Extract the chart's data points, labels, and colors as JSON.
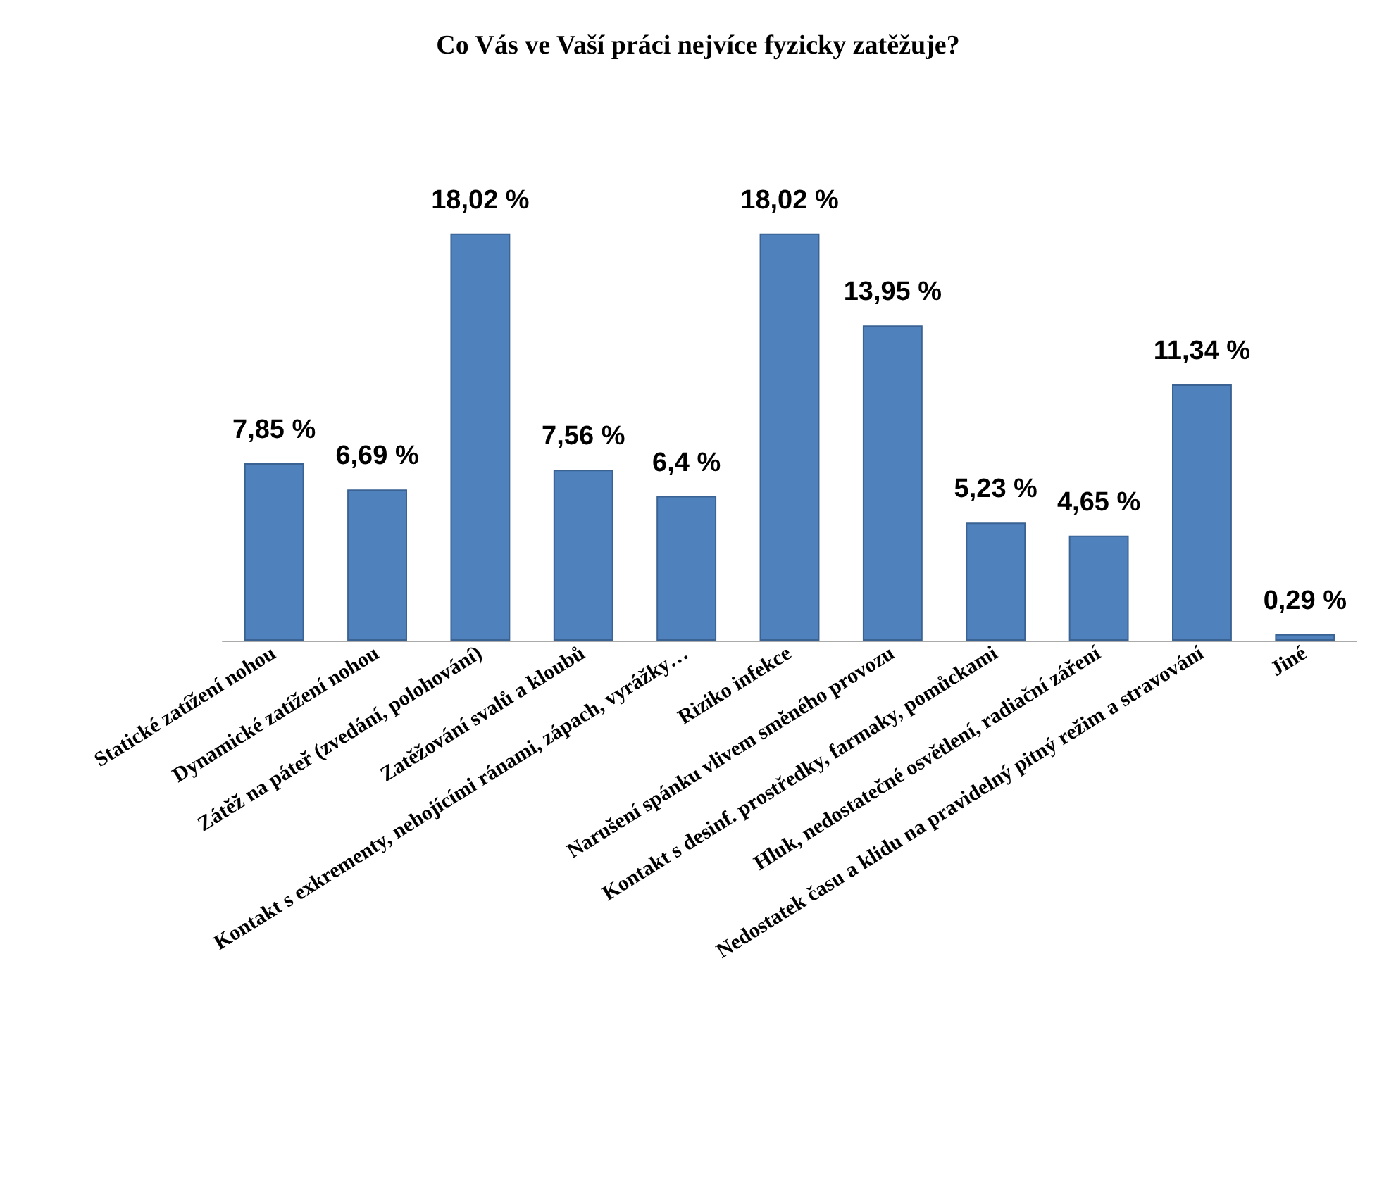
{
  "chart_data": {
    "type": "bar",
    "title": "Co Vás ve Vaší práci nejvíce fyzicky zatěžuje?",
    "categories": [
      "Statické zatížení nohou",
      "Dynamické zatížení nohou",
      "Zátěž na páteř (zvedání, polohování)",
      "Zatěžování svalů a kloubů",
      "Kontakt s exkrementy, nehojícími ránami, zápach, vyrážky…",
      "Riziko infekce",
      "Narušení spánku vlivem směného provozu",
      "Kontakt s desinf. prostředky, farmaky, pomůckami",
      "Hluk, nedostatečné osvětlení, radiační záření",
      "Nedostatek času a klidu na pravidelný pitný režim a stravování",
      "Jiné"
    ],
    "values": [
      7.85,
      6.69,
      18.02,
      7.56,
      6.4,
      18.02,
      13.95,
      5.23,
      4.65,
      11.34,
      0.29
    ],
    "value_labels": [
      "7,85 %",
      "6,69 %",
      "18,02 %",
      "7,56 %",
      "6,4 %",
      "18,02 %",
      "13,95 %",
      "5,23 %",
      "4,65 %",
      "11,34 %",
      "0,29 %"
    ],
    "color": "#4f81bd",
    "tick_labels": "x"
  }
}
